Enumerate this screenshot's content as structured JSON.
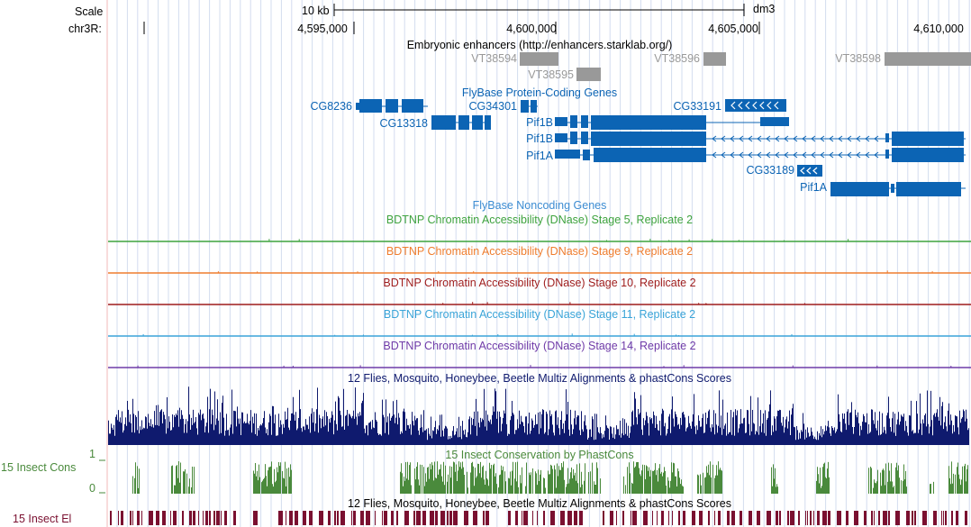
{
  "scale": {
    "label": "Scale",
    "bar_label": "10 kb",
    "assembly": "dm3"
  },
  "chrom": {
    "label": "chr3R:"
  },
  "ruler_ticks": [
    "4,595,000",
    "4,600,000",
    "4,605,000",
    "4,610,000"
  ],
  "tracks": {
    "enhancers": {
      "title": "Embryonic enhancers (http://enhancers.starklab.org/)",
      "color": "#999999",
      "items": [
        {
          "name": "VT38594"
        },
        {
          "name": "VT38595"
        },
        {
          "name": "VT38596"
        },
        {
          "name": "VT38598"
        }
      ]
    },
    "protein_coding": {
      "title": "FlyBase Protein-Coding Genes",
      "color": "#0c64b4",
      "genes": [
        {
          "name": "CG8236"
        },
        {
          "name": "CG13318"
        },
        {
          "name": "CG34301"
        },
        {
          "name": "CG33191"
        },
        {
          "name": "Pif1B"
        },
        {
          "name": "Pif1B"
        },
        {
          "name": "Pif1A"
        },
        {
          "name": "CG33189"
        },
        {
          "name": "Pif1A"
        }
      ]
    },
    "noncoding": {
      "title": "FlyBase Noncoding Genes",
      "color": "#3c8cd2"
    },
    "dnase": [
      {
        "title": "BDTNP Chromatin Accessibility (DNase) Stage 5, Replicate 2",
        "color": "#3fa33f"
      },
      {
        "title": "BDTNP Chromatin Accessibility (DNase) Stage 9, Replicate 2",
        "color": "#ef7d2e"
      },
      {
        "title": "BDTNP Chromatin Accessibility (DNase) Stage 10, Replicate 2",
        "color": "#9e1c1c"
      },
      {
        "title": "BDTNP Chromatin Accessibility (DNase) Stage 11, Replicate 2",
        "color": "#3aa4d8"
      },
      {
        "title": "BDTNP Chromatin Accessibility (DNase) Stage 14, Replicate 2",
        "color": "#6f3ba8"
      }
    ],
    "multiz": {
      "title": "12 Flies, Mosquito, Honeybee, Beetle Multiz Alignments & phastCons Scores",
      "color": "#0f1a6e"
    },
    "insect_cons": {
      "title": "15 Insect Conservation by PhastCons",
      "side_label": "15 Insect Cons",
      "axis_max": "1",
      "axis_min": "0",
      "color": "#4a8a3c"
    },
    "multiz2": {
      "title": "12 Flies, Mosquito, Honeybee, Beetle Multiz Alignments & phastCons Scores",
      "color": "#000000"
    },
    "insect_el": {
      "side_label": "15 Insect El",
      "color": "#7a1030"
    }
  }
}
